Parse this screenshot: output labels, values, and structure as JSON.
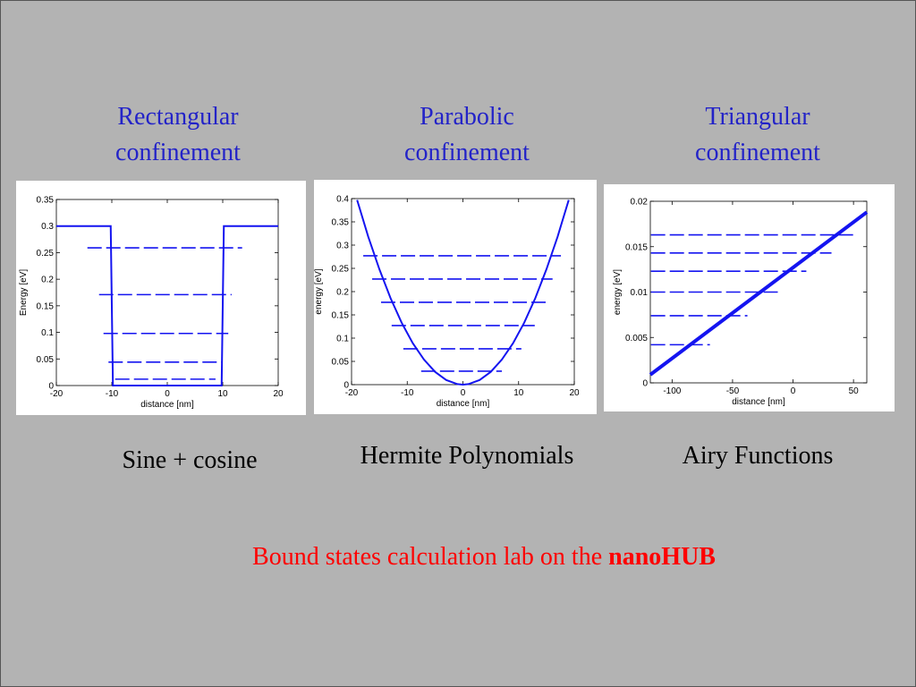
{
  "slide": {
    "titles": [
      "Rectangular confinement",
      "Parabolic confinement",
      "Triangular confinement"
    ],
    "captions": [
      "Sine + cosine",
      "Hermite Polynomials",
      "Airy Functions"
    ],
    "footer": {
      "text": "Bound states calculation lab on the",
      "emphasis": "nanoHUB"
    }
  },
  "chart_data": [
    {
      "type": "line",
      "ylabel": "Energy [eV]",
      "xlabel": "distance [nm]",
      "color": "#1414f0",
      "xlim": [
        -20,
        20
      ],
      "xticks": [
        -20,
        -10,
        0,
        10,
        20
      ],
      "ylim": [
        0,
        0.35
      ],
      "yticks": [
        0,
        0.05,
        0.1,
        0.15,
        0.2,
        0.25,
        0.3,
        0.35
      ],
      "series": [
        {
          "color": "#1414f0",
          "x": [
            -20,
            -10.2,
            -9.8,
            9.8,
            10.2,
            20
          ],
          "values": [
            0.3,
            0.3,
            0,
            0,
            0.3,
            0.3
          ]
        }
      ],
      "levels": [
        {
          "energy": 0.012,
          "xrange": [
            -9.4,
            8.7
          ]
        },
        {
          "energy": 0.044,
          "xrange": [
            -10.6,
            10
          ]
        },
        {
          "energy": 0.098,
          "xrange": [
            -11.5,
            11
          ]
        },
        {
          "energy": 0.171,
          "xrange": [
            -12.3,
            11.6
          ]
        },
        {
          "energy": 0.259,
          "xrange": [
            -14.4,
            13.5
          ]
        }
      ]
    },
    {
      "type": "line",
      "ylabel": "energy [eV]",
      "xlabel": "distance [nm]",
      "color": "#1414f0",
      "xlim": [
        -20,
        20
      ],
      "xticks": [
        -20,
        -10,
        0,
        10,
        20
      ],
      "ylim": [
        0,
        0.4
      ],
      "yticks": [
        0,
        0.05,
        0.1,
        0.15,
        0.2,
        0.25,
        0.3,
        0.35,
        0.4
      ],
      "series": [
        {
          "color": "#1414f0",
          "x": [
            -19,
            -17,
            -15,
            -13,
            -11,
            -9,
            -7,
            -5,
            -3,
            -1,
            0,
            1,
            3,
            5,
            7,
            9,
            11,
            13,
            15,
            17,
            19
          ],
          "values": [
            0.397,
            0.318,
            0.248,
            0.186,
            0.133,
            0.089,
            0.054,
            0.0275,
            0.0099,
            0.0011,
            0,
            0.0011,
            0.0099,
            0.0275,
            0.054,
            0.089,
            0.133,
            0.186,
            0.248,
            0.318,
            0.397
          ]
        }
      ],
      "levels": [
        {
          "energy": 0.029,
          "xrange": [
            -7.5,
            7
          ]
        },
        {
          "energy": 0.077,
          "xrange": [
            -10.7,
            10.5
          ]
        },
        {
          "energy": 0.127,
          "xrange": [
            -12.8,
            12.9
          ]
        },
        {
          "energy": 0.177,
          "xrange": [
            -14.7,
            14.9
          ]
        },
        {
          "energy": 0.227,
          "xrange": [
            -16.3,
            16.1
          ]
        },
        {
          "energy": 0.277,
          "xrange": [
            -17.9,
            17.6
          ]
        }
      ]
    },
    {
      "type": "line",
      "ylabel": "energy [eV]",
      "xlabel": "distance [nm]",
      "color": "#1414f0",
      "xlim": [
        -118,
        61
      ],
      "xticks": [
        -100,
        -50,
        0,
        50
      ],
      "ylim": [
        0,
        0.02
      ],
      "yticks": [
        0,
        0.005,
        0.01,
        0.015,
        0.02
      ],
      "series": [
        {
          "color": "#1414f0",
          "x": [
            -118,
            61
          ],
          "values": [
            0.0009,
            0.0188
          ]
        }
      ],
      "levels": [
        {
          "energy": 0.0042,
          "xrange": [
            -117.5,
            -68.7
          ]
        },
        {
          "energy": 0.0074,
          "xrange": [
            -117.5,
            -37.7
          ]
        },
        {
          "energy": 0.01,
          "xrange": [
            -117.5,
            -12.6
          ]
        },
        {
          "energy": 0.0123,
          "xrange": [
            -117.5,
            11
          ]
        },
        {
          "energy": 0.0143,
          "xrange": [
            -117.5,
            31.8
          ]
        },
        {
          "energy": 0.0163,
          "xrange": [
            -117.5,
            50
          ]
        }
      ]
    }
  ]
}
